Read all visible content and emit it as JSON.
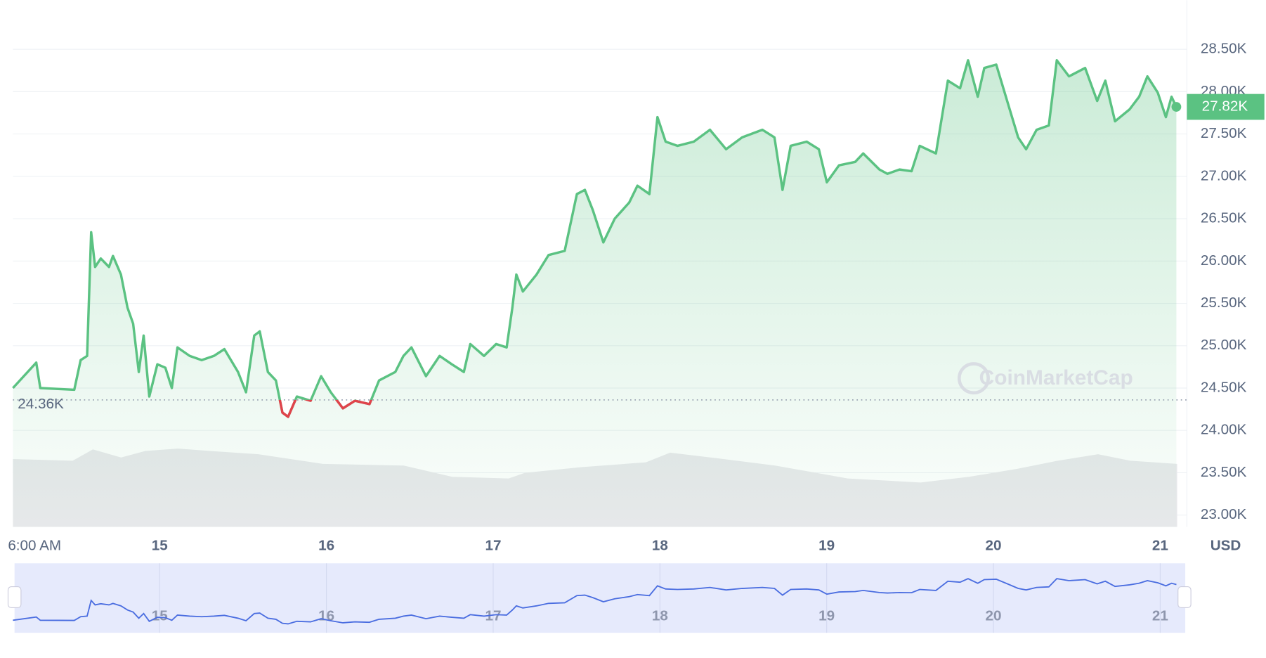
{
  "chart_data": {
    "type": "line",
    "x": [
      14.12,
      14.26,
      14.284,
      14.488,
      14.526,
      14.565,
      14.589,
      14.613,
      14.647,
      14.696,
      14.72,
      14.768,
      14.807,
      14.841,
      14.875,
      14.904,
      14.938,
      14.986,
      15.034,
      15.073,
      15.107,
      15.18,
      15.252,
      15.325,
      15.388,
      15.47,
      15.518,
      15.567,
      15.6,
      15.649,
      15.697,
      15.736,
      15.77,
      15.823,
      15.905,
      15.968,
      16.026,
      16.099,
      16.171,
      16.258,
      16.316,
      16.413,
      16.462,
      16.51,
      16.597,
      16.679,
      16.752,
      16.824,
      16.863,
      16.945,
      17.018,
      17.081,
      17.115,
      17.139,
      17.178,
      17.26,
      17.332,
      17.429,
      17.502,
      17.55,
      17.598,
      17.661,
      17.729,
      17.816,
      17.865,
      17.937,
      17.985,
      18.034,
      18.106,
      18.203,
      18.3,
      18.397,
      18.493,
      18.614,
      18.687,
      18.735,
      18.784,
      18.88,
      18.953,
      19.001,
      19.074,
      19.171,
      19.219,
      19.316,
      19.364,
      19.437,
      19.509,
      19.558,
      19.655,
      19.727,
      19.8,
      19.848,
      19.906,
      19.945,
      20.017,
      20.09,
      20.148,
      20.196,
      20.259,
      20.332,
      20.38,
      20.453,
      20.55,
      20.622,
      20.671,
      20.729,
      20.816,
      20.874,
      20.923,
      20.985,
      21.034,
      21.068,
      21.097
    ],
    "series": [
      {
        "color": "#5bc282",
        "values": [
          24.5,
          24.8,
          24.5,
          24.48,
          24.83,
          24.88,
          26.34,
          25.93,
          26.03,
          25.93,
          26.06,
          25.84,
          25.45,
          25.26,
          24.69,
          25.12,
          24.4,
          24.78,
          24.74,
          24.5,
          24.98,
          24.88,
          24.83,
          24.88,
          24.96,
          24.69,
          24.45,
          25.12,
          25.17,
          24.69,
          24.59,
          24.21,
          24.16,
          24.4,
          24.35,
          24.64,
          24.45,
          24.26,
          24.35,
          24.31,
          24.59,
          24.69,
          24.88,
          24.98,
          24.64,
          24.88,
          24.78,
          24.69,
          25.02,
          24.88,
          25.02,
          24.98,
          25.45,
          25.84,
          25.64,
          25.84,
          26.07,
          26.12,
          26.79,
          26.84,
          26.6,
          26.22,
          26.5,
          26.69,
          26.89,
          26.79,
          27.7,
          27.41,
          27.36,
          27.41,
          27.55,
          27.32,
          27.46,
          27.55,
          27.46,
          26.84,
          27.36,
          27.41,
          27.32,
          26.93,
          27.13,
          27.17,
          27.27,
          27.08,
          27.03,
          27.08,
          27.06,
          27.36,
          27.27,
          28.13,
          28.04,
          28.37,
          27.94,
          28.28,
          28.32,
          27.84,
          27.46,
          27.32,
          27.55,
          27.6,
          28.37,
          28.18,
          28.28,
          27.89,
          28.13,
          27.65,
          27.79,
          27.94,
          28.18,
          27.99,
          27.7,
          27.94,
          27.82
        ]
      }
    ],
    "below_color": "#e0434b",
    "navigator_color": "#4a6de0",
    "xlim": [
      14.12,
      21.16
    ],
    "xticks": [
      {
        "value": 14.25,
        "label": "6:00 AM"
      },
      {
        "value": 15,
        "label": "15"
      },
      {
        "value": 16,
        "label": "16"
      },
      {
        "value": 17,
        "label": "17"
      },
      {
        "value": 18,
        "label": "18"
      },
      {
        "value": 19,
        "label": "19"
      },
      {
        "value": 20,
        "label": "20"
      },
      {
        "value": 21,
        "label": "21"
      }
    ],
    "ylim": [
      22.86,
      29.08
    ],
    "yticks": [
      {
        "value": 23,
        "label": "23.00K"
      },
      {
        "value": 23.5,
        "label": "23.50K"
      },
      {
        "value": 24,
        "label": "24.00K"
      },
      {
        "value": 24.5,
        "label": "24.50K"
      },
      {
        "value": 25,
        "label": "25.00K"
      },
      {
        "value": 25.5,
        "label": "25.50K"
      },
      {
        "value": 26,
        "label": "26.00K"
      },
      {
        "value": 26.5,
        "label": "26.50K"
      },
      {
        "value": 27,
        "label": "27.00K"
      },
      {
        "value": 27.5,
        "label": "27.50K"
      },
      {
        "value": 28,
        "label": "28.00K"
      },
      {
        "value": 28.5,
        "label": "28.50K"
      }
    ],
    "y_unit": "USD",
    "baseline": {
      "value": 24.36,
      "label": "24.36K"
    },
    "current": {
      "value": 27.82,
      "label": "27.82K"
    },
    "watermark": "CoinMarketCap",
    "grid": true
  }
}
